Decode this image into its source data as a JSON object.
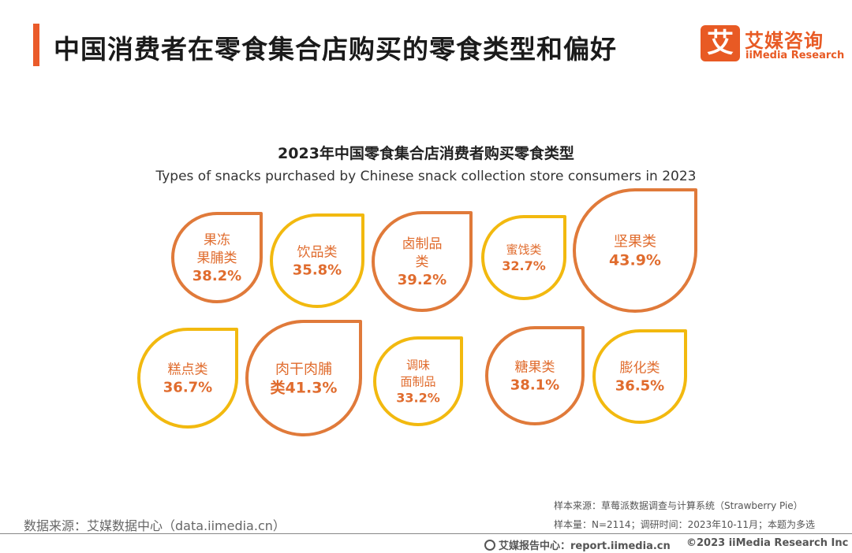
{
  "header": {
    "title": "中国消费者在零食集合店购买的零食类型和偏好",
    "accent_color": "#ea5b2a"
  },
  "logo": {
    "mark": "艾",
    "cn": "艾媒咨询",
    "en": "iiMedia Research",
    "color": "#e85a24"
  },
  "chart_data": {
    "type": "other",
    "title": "2023年中国零食集合店消费者购买零食类型",
    "subtitle": "Types of snacks purchased by Chinese snack collection store consumers in 2023",
    "unit": "%",
    "items": [
      {
        "lines": [
          "果冻",
          "果脯类"
        ],
        "value": 38.2,
        "value_label": "38.2%",
        "style": "orange"
      },
      {
        "lines": [
          "饮品类"
        ],
        "value": 35.8,
        "value_label": "35.8%",
        "style": "yellow"
      },
      {
        "lines": [
          "卤制品",
          "类"
        ],
        "value": 39.2,
        "value_label": "39.2%",
        "style": "orange"
      },
      {
        "lines": [
          "蜜饯类"
        ],
        "value": 32.7,
        "value_label": "32.7%",
        "style": "yellow"
      },
      {
        "lines": [
          "坚果类"
        ],
        "value": 43.9,
        "value_label": "43.9%",
        "style": "orange"
      },
      {
        "lines": [
          "糕点类"
        ],
        "value": 36.7,
        "value_label": "36.7%",
        "style": "yellow"
      },
      {
        "lines": [
          "肉干肉脯"
        ],
        "value": 41.3,
        "value_label": "类41.3%",
        "style": "orange"
      },
      {
        "lines": [
          "调味",
          "面制品"
        ],
        "value": 33.2,
        "value_label": "33.2%",
        "style": "yellow"
      },
      {
        "lines": [
          "糖果类"
        ],
        "value": 38.1,
        "value_label": "38.1%",
        "style": "orange"
      },
      {
        "lines": [
          "膨化类"
        ],
        "value": 36.5,
        "value_label": "36.5%",
        "style": "yellow"
      }
    ],
    "colors": {
      "orange": "#e07a3a",
      "yellow": "#f2b90f",
      "text": "#e06c2e"
    }
  },
  "footer": {
    "source": "数据来源：艾媒数据中心（data.iimedia.cn）",
    "note_sample_source": "样本来源：草莓派数据调查与计算系统（Strawberry Pie）",
    "note_sample_size": "样本量：N=2114；调研时间：2023年10-11月；本题为多选",
    "report_center": "艾媒报告中心：report.iimedia.cn",
    "copyright": "©2023  iiMedia Research  Inc"
  }
}
